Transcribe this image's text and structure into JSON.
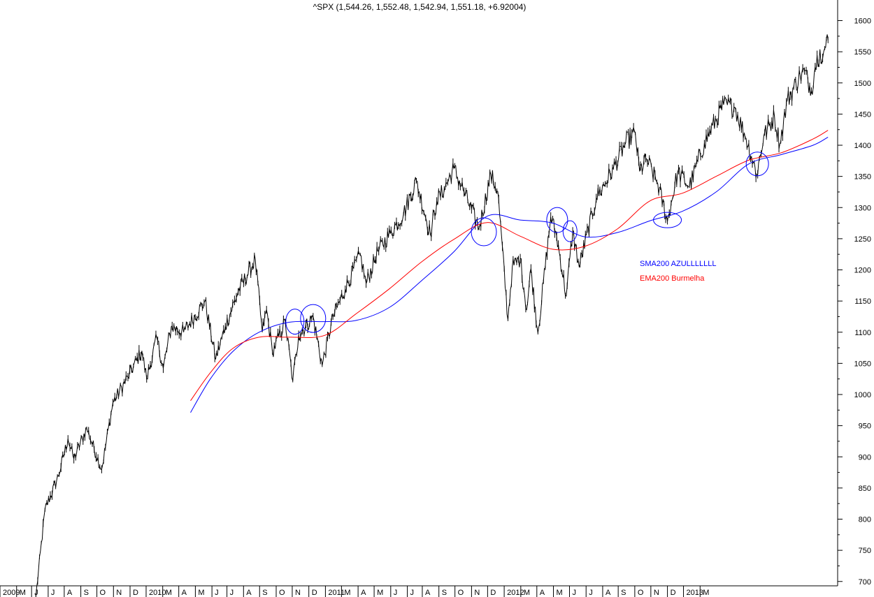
{
  "chart_data": {
    "type": "line",
    "title": "^SPX (1,544.26, 1,552.48, 1,542.94, 1,551.18, +6.92004)",
    "xlabel": "",
    "ylabel": "",
    "ylim": [
      690,
      1625
    ],
    "y_ticks": [
      1600,
      1550,
      1500,
      1450,
      1400,
      1350,
      1300,
      1250,
      1200,
      1150,
      1100,
      1050,
      1000,
      950,
      900,
      850,
      800,
      750,
      700
    ],
    "x_tick_labels": [
      "2009",
      "M",
      "J",
      "J",
      "A",
      "S",
      "O",
      "N",
      "D",
      "2010",
      "M",
      "A",
      "M",
      "J",
      "J",
      "A",
      "S",
      "O",
      "N",
      "D",
      "2011",
      "M",
      "A",
      "M",
      "J",
      "J",
      "A",
      "S",
      "O",
      "N",
      "D",
      "2012",
      "M",
      "A",
      "M",
      "J",
      "J",
      "A",
      "S",
      "O",
      "N",
      "D",
      "2013",
      "M"
    ],
    "grid": false,
    "legend_position": "center-right",
    "colors": {
      "price": "#000000",
      "sma": "#0000ff",
      "ema": "#ff0000",
      "circles": "#0000ff"
    },
    "series": [
      {
        "name": "^SPX",
        "x": [
          "2009-03-09",
          "2009-03-26",
          "2009-04-20",
          "2009-05-08",
          "2009-05-19",
          "2009-06-12",
          "2009-07-10",
          "2009-07-31",
          "2009-08-28",
          "2009-09-23",
          "2009-10-02",
          "2009-10-21",
          "2009-11-02",
          "2009-11-17",
          "2009-12-10",
          "2010-01-19",
          "2010-02-08",
          "2010-02-26",
          "2010-03-22",
          "2010-04-23",
          "2010-05-06",
          "2010-05-14",
          "2010-05-25",
          "2010-06-18",
          "2010-07-02",
          "2010-07-13",
          "2010-08-09",
          "2010-08-26",
          "2010-09-15",
          "2010-10-08",
          "2010-11-05",
          "2010-11-16",
          "2010-12-08",
          "2010-12-31",
          "2011-01-25",
          "2011-02-18",
          "2011-03-16",
          "2011-03-28",
          "2011-04-11",
          "2011-04-29",
          "2011-05-18",
          "2011-06-15",
          "2011-07-07",
          "2011-07-20",
          "2011-08-08",
          "2011-08-16",
          "2011-08-31",
          "2011-09-12",
          "2011-09-20",
          "2011-10-03",
          "2011-10-27",
          "2011-11-07",
          "2011-11-25",
          "2011-12-07",
          "2011-12-19",
          "2012-01-20",
          "2012-02-21",
          "2012-03-15",
          "2012-04-02",
          "2012-04-10",
          "2012-04-23",
          "2012-05-14",
          "2012-06-01",
          "2012-06-20",
          "2012-07-12",
          "2012-08-09",
          "2012-09-14",
          "2012-10-05",
          "2012-10-26",
          "2012-11-15",
          "2012-11-28",
          "2012-12-18",
          "2012-12-28",
          "2013-01-11",
          "2013-02-04",
          "2013-02-12",
          "2013-02-25",
          "2013-03-04",
          "2013-03-13",
          "2013-03-18",
          "2013-03-22",
          "2013-03-28"
        ],
        "values": [
          676,
          815,
          869,
          929,
          897,
          946,
          880,
          987,
          1028,
          1070,
          1025,
          1091,
          1042,
          1109,
          1100,
          1150,
          1057,
          1109,
          1165,
          1217,
          1100,
          1136,
          1068,
          1117,
          1022,
          1095,
          1125,
          1047,
          1125,
          1169,
          1225,
          1178,
          1230,
          1258,
          1290,
          1343,
          1257,
          1310,
          1330,
          1363,
          1325,
          1267,
          1353,
          1326,
          1120,
          1204,
          1218,
          1136,
          1202,
          1099,
          1285,
          1254,
          1158,
          1262,
          1205,
          1315,
          1362,
          1404,
          1419,
          1358,
          1378,
          1338,
          1278,
          1357,
          1334,
          1403,
          1465,
          1461,
          1411,
          1353,
          1415,
          1446,
          1402,
          1472,
          1512,
          1519,
          1488,
          1525,
          1554,
          1540,
          1556,
          1569
        ]
      },
      {
        "name": "SMA200 AZULLLLLLL",
        "x": [
          "2009-12-23",
          "2010-01-29",
          "2010-03-12",
          "2010-04-30",
          "2010-06-25",
          "2010-08-31",
          "2010-10-29",
          "2010-12-30",
          "2011-02-28",
          "2011-04-29",
          "2011-06-30",
          "2011-08-31",
          "2011-10-31",
          "2011-12-30",
          "2012-02-29",
          "2012-04-30",
          "2012-06-29",
          "2012-08-31",
          "2012-10-31",
          "2012-12-31",
          "2013-02-28",
          "2013-03-28"
        ],
        "values": [
          971,
          1025,
          1069,
          1100,
          1116,
          1117,
          1119,
          1140,
          1183,
          1229,
          1286,
          1280,
          1275,
          1253,
          1260,
          1279,
          1294,
          1325,
          1370,
          1385,
          1400,
          1413
        ]
      },
      {
        "name": "EMA200 Burmelha",
        "x": [
          "2009-12-23",
          "2010-01-29",
          "2010-03-12",
          "2010-04-30",
          "2010-06-25",
          "2010-08-31",
          "2010-10-29",
          "2010-12-30",
          "2011-02-28",
          "2011-04-29",
          "2011-06-30",
          "2011-08-31",
          "2011-10-31",
          "2011-12-30",
          "2012-02-29",
          "2012-04-30",
          "2012-06-29",
          "2012-08-31",
          "2012-10-31",
          "2012-12-31",
          "2013-02-28",
          "2013-03-28"
        ],
        "values": [
          990,
          1035,
          1074,
          1092,
          1092,
          1095,
          1130,
          1170,
          1213,
          1249,
          1276,
          1254,
          1233,
          1238,
          1266,
          1311,
          1323,
          1350,
          1376,
          1388,
          1410,
          1424
        ]
      }
    ],
    "annotations": [
      {
        "type": "circle",
        "x": "2010-07-06",
        "y": 1117
      },
      {
        "type": "circle",
        "x": "2010-08-09",
        "y": 1122
      },
      {
        "type": "circle",
        "x": "2011-06-24",
        "y": 1261
      },
      {
        "type": "circle",
        "x": "2011-11-08",
        "y": 1280
      },
      {
        "type": "circle",
        "x": "2011-12-02",
        "y": 1262
      },
      {
        "type": "circle",
        "x": "2012-06-01",
        "y": 1280
      },
      {
        "type": "circle",
        "x": "2012-11-16",
        "y": 1370
      }
    ]
  }
}
